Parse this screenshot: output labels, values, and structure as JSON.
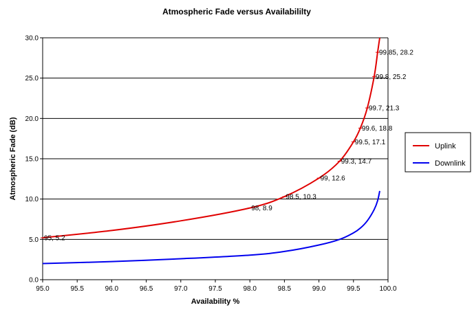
{
  "chart_data": {
    "type": "line",
    "title": "Atmospheric Fade versus Availabililty",
    "xlabel": "Availability %",
    "ylabel": "Atmospheric Fade (dB)",
    "xlim": [
      95.0,
      100.0
    ],
    "ylim": [
      0.0,
      30.0
    ],
    "x_ticks": [
      "95.0",
      "95.5",
      "96.0",
      "96.5",
      "97.0",
      "97.5",
      "98.0",
      "98.5",
      "99.0",
      "99.5",
      "100.0"
    ],
    "y_ticks": [
      "0.0",
      "5.0",
      "10.0",
      "15.0",
      "20.0",
      "25.0",
      "30.0"
    ],
    "grid": "horizontal",
    "legend_position": "right",
    "series": [
      {
        "name": "Uplink",
        "color": "#e00000",
        "points": [
          {
            "x": 95.0,
            "y": 5.2
          },
          {
            "x": 96.0,
            "y": 6.1
          },
          {
            "x": 97.0,
            "y": 7.3
          },
          {
            "x": 98.0,
            "y": 8.9
          },
          {
            "x": 98.5,
            "y": 10.3
          },
          {
            "x": 99.0,
            "y": 12.6
          },
          {
            "x": 99.3,
            "y": 14.7
          },
          {
            "x": 99.5,
            "y": 17.1
          },
          {
            "x": 99.6,
            "y": 18.8
          },
          {
            "x": 99.7,
            "y": 21.3
          },
          {
            "x": 99.8,
            "y": 25.2
          },
          {
            "x": 99.85,
            "y": 28.2
          },
          {
            "x": 99.88,
            "y": 30.0
          }
        ],
        "labels": [
          {
            "x": 95.0,
            "y": 5.2,
            "text": "95, 5.2"
          },
          {
            "x": 98.0,
            "y": 8.9,
            "text": "98, 8.9"
          },
          {
            "x": 98.5,
            "y": 10.3,
            "text": "98.5, 10.3"
          },
          {
            "x": 99.0,
            "y": 12.6,
            "text": "99, 12.6"
          },
          {
            "x": 99.3,
            "y": 14.7,
            "text": "99.3, 14.7"
          },
          {
            "x": 99.5,
            "y": 17.1,
            "text": "99.5, 17.1"
          },
          {
            "x": 99.6,
            "y": 18.8,
            "text": "99.6, 18.8"
          },
          {
            "x": 99.7,
            "y": 21.3,
            "text": "99.7, 21.3"
          },
          {
            "x": 99.8,
            "y": 25.2,
            "text": "99.8, 25.2"
          },
          {
            "x": 99.85,
            "y": 28.2,
            "text": "99.85, 28.2"
          }
        ]
      },
      {
        "name": "Downlink",
        "color": "#0000ee",
        "points": [
          {
            "x": 95.0,
            "y": 2.0
          },
          {
            "x": 96.0,
            "y": 2.25
          },
          {
            "x": 97.0,
            "y": 2.6
          },
          {
            "x": 98.0,
            "y": 3.05
          },
          {
            "x": 98.5,
            "y": 3.5
          },
          {
            "x": 99.0,
            "y": 4.3
          },
          {
            "x": 99.3,
            "y": 5.0
          },
          {
            "x": 99.5,
            "y": 5.8
          },
          {
            "x": 99.6,
            "y": 6.4
          },
          {
            "x": 99.7,
            "y": 7.3
          },
          {
            "x": 99.8,
            "y": 8.7
          },
          {
            "x": 99.85,
            "y": 9.8
          },
          {
            "x": 99.88,
            "y": 11.0
          }
        ]
      }
    ]
  }
}
